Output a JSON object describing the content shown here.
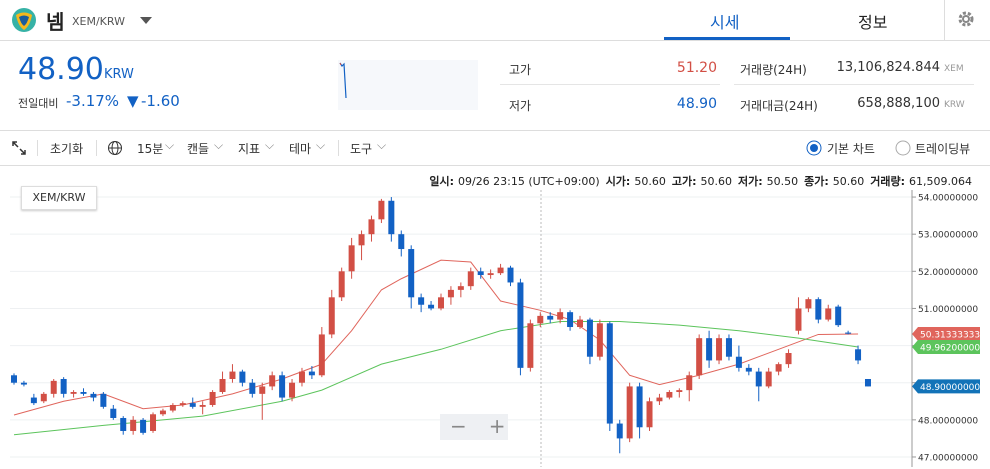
{
  "header": {
    "coin": "넴",
    "pair": "XEM/KRW",
    "tabs": [
      "시세",
      "정보"
    ]
  },
  "summary": {
    "price": "48.90",
    "unit": "KRW",
    "change_label": "전일대비",
    "change_pct": "-3.17%",
    "change": "-1.60",
    "stats": [
      {
        "label": "고가",
        "value": "51.20"
      },
      {
        "label": "저가",
        "value": "48.90"
      },
      {
        "label": "거래량(24H)",
        "value": "13,106,824.844",
        "unit": "XEM"
      },
      {
        "label": "거래대금(24H)",
        "value": "658,888,100",
        "unit": "KRW"
      }
    ]
  },
  "toolbar": {
    "items": [
      "초기화",
      "15분",
      "캔들",
      "지표",
      "테마",
      "도구"
    ],
    "views": [
      "기본 차트",
      "트레이딩뷰"
    ]
  },
  "info": [
    {
      "label": "일시:",
      "value": "09/26 23:15 (UTC+09:00)"
    },
    {
      "label": "시가:",
      "value": "50.60"
    },
    {
      "label": "고가:",
      "value": "50.60"
    },
    {
      "label": "저가:",
      "value": "50.50"
    },
    {
      "label": "종가:",
      "value": "50.60"
    },
    {
      "label": "거래량:",
      "value": "61,509.064"
    }
  ],
  "chart_data": {
    "type": "candlestick",
    "legend": "XEM/KRW",
    "up_color": "#d24f45",
    "down_color": "#1261c4",
    "ylim": [
      46.73,
      54.19
    ],
    "yticks": [
      {
        "value": 47,
        "label": "47.00000000"
      },
      {
        "value": 48,
        "label": "48.00000000"
      },
      {
        "value": 49,
        "label": "49.00000000"
      },
      {
        "value": 50,
        "label": "50.00000000"
      },
      {
        "value": 51,
        "label": "51.00000000"
      },
      {
        "value": 52,
        "label": "52.00000000"
      },
      {
        "value": 53,
        "label": "53.00000000"
      },
      {
        "value": 54,
        "label": "54.00000000"
      }
    ],
    "candles": [
      [
        49.2,
        49.25,
        48.95,
        49.0
      ],
      [
        49.0,
        49.05,
        48.9,
        48.95
      ],
      [
        48.6,
        48.7,
        48.4,
        48.45
      ],
      [
        48.5,
        48.75,
        48.45,
        48.7
      ],
      [
        48.7,
        49.1,
        48.6,
        49.05
      ],
      [
        49.1,
        49.15,
        48.6,
        48.7
      ],
      [
        48.7,
        48.8,
        48.6,
        48.75
      ],
      [
        48.75,
        48.85,
        48.65,
        48.7
      ],
      [
        48.7,
        48.75,
        48.5,
        48.6
      ],
      [
        48.7,
        48.75,
        48.3,
        48.35
      ],
      [
        48.3,
        48.4,
        48.0,
        48.05
      ],
      [
        48.05,
        48.1,
        47.6,
        47.7
      ],
      [
        47.7,
        48.1,
        47.6,
        48.0
      ],
      [
        48.0,
        48.05,
        47.6,
        47.65
      ],
      [
        47.7,
        48.2,
        47.65,
        48.15
      ],
      [
        48.15,
        48.3,
        48.1,
        48.25
      ],
      [
        48.25,
        48.45,
        48.2,
        48.4
      ],
      [
        48.4,
        48.5,
        48.35,
        48.45
      ],
      [
        48.45,
        48.6,
        48.3,
        48.35
      ],
      [
        48.35,
        48.5,
        48.15,
        48.4
      ],
      [
        48.4,
        48.8,
        48.35,
        48.75
      ],
      [
        48.75,
        49.3,
        48.7,
        49.1
      ],
      [
        49.1,
        49.5,
        49.0,
        49.3
      ],
      [
        49.3,
        49.35,
        48.9,
        49.0
      ],
      [
        49.0,
        49.1,
        48.6,
        48.7
      ],
      [
        48.7,
        49.0,
        48.0,
        48.9
      ],
      [
        48.9,
        49.3,
        48.8,
        49.2
      ],
      [
        49.2,
        49.3,
        48.5,
        48.6
      ],
      [
        48.6,
        49.1,
        48.5,
        49.0
      ],
      [
        49.0,
        49.4,
        48.9,
        49.3
      ],
      [
        49.3,
        49.45,
        49.1,
        49.2
      ],
      [
        49.2,
        50.5,
        49.15,
        50.3
      ],
      [
        50.3,
        51.5,
        50.2,
        51.3
      ],
      [
        51.3,
        52.1,
        51.2,
        52.0
      ],
      [
        52.0,
        52.9,
        51.8,
        52.7
      ],
      [
        52.7,
        53.1,
        52.3,
        53.0
      ],
      [
        53.0,
        53.5,
        52.8,
        53.4
      ],
      [
        53.4,
        53.95,
        53.3,
        53.9
      ],
      [
        53.9,
        54.0,
        52.8,
        53.0
      ],
      [
        53.0,
        53.1,
        52.4,
        52.6
      ],
      [
        52.6,
        52.7,
        51.0,
        51.3
      ],
      [
        51.3,
        51.4,
        50.9,
        51.1
      ],
      [
        51.1,
        51.2,
        50.95,
        51.0
      ],
      [
        51.0,
        51.4,
        50.95,
        51.3
      ],
      [
        51.3,
        51.6,
        51.1,
        51.5
      ],
      [
        51.5,
        51.7,
        51.3,
        51.6
      ],
      [
        51.6,
        52.1,
        51.5,
        52.0
      ],
      [
        52.0,
        52.1,
        51.8,
        51.9
      ],
      [
        51.9,
        52.05,
        51.8,
        51.95
      ],
      [
        51.95,
        52.2,
        51.9,
        52.1
      ],
      [
        52.1,
        52.15,
        51.6,
        51.7
      ],
      [
        51.7,
        51.8,
        49.2,
        49.4
      ],
      [
        49.4,
        50.7,
        49.3,
        50.6
      ],
      [
        50.6,
        50.9,
        50.5,
        50.8
      ],
      [
        50.8,
        50.9,
        50.6,
        50.7
      ],
      [
        50.7,
        51.0,
        50.6,
        50.9
      ],
      [
        50.9,
        50.95,
        50.4,
        50.5
      ],
      [
        50.5,
        50.8,
        50.45,
        50.7
      ],
      [
        50.7,
        50.75,
        49.5,
        49.7
      ],
      [
        49.7,
        50.7,
        49.6,
        50.6
      ],
      [
        50.6,
        50.65,
        47.7,
        47.9
      ],
      [
        47.9,
        48.0,
        47.1,
        47.5
      ],
      [
        47.5,
        49.0,
        47.4,
        48.9
      ],
      [
        48.9,
        49.0,
        47.5,
        47.8
      ],
      [
        47.8,
        48.6,
        47.7,
        48.5
      ],
      [
        48.5,
        48.7,
        48.4,
        48.6
      ],
      [
        48.6,
        48.8,
        48.55,
        48.75
      ],
      [
        48.75,
        48.85,
        48.6,
        48.8
      ],
      [
        48.8,
        49.3,
        48.5,
        49.2
      ],
      [
        49.2,
        50.3,
        49.1,
        50.2
      ],
      [
        50.2,
        50.4,
        49.4,
        49.6
      ],
      [
        49.6,
        50.3,
        49.5,
        50.2
      ],
      [
        50.2,
        50.3,
        49.6,
        49.7
      ],
      [
        49.7,
        50.0,
        49.3,
        49.4
      ],
      [
        49.4,
        49.5,
        49.2,
        49.3
      ],
      [
        49.3,
        49.4,
        48.5,
        48.9
      ],
      [
        48.9,
        49.4,
        48.85,
        49.3
      ],
      [
        49.3,
        49.55,
        49.2,
        49.5
      ],
      [
        49.5,
        49.9,
        49.4,
        49.8
      ],
      [
        50.4,
        51.3,
        50.3,
        51.0
      ],
      [
        51.0,
        51.3,
        50.9,
        51.25
      ],
      [
        51.25,
        51.3,
        50.6,
        50.7
      ],
      [
        50.7,
        51.1,
        50.65,
        51.0
      ],
      [
        51.05,
        51.1,
        50.5,
        50.55
      ],
      [
        50.35,
        50.4,
        50.3,
        50.32
      ],
      [
        49.9,
        50.0,
        49.5,
        49.6
      ],
      [
        49.1,
        49.1,
        48.9,
        48.9
      ]
    ],
    "series": [
      {
        "color": "#e0655c",
        "x": [
          0,
          5,
          9,
          13,
          17,
          22,
          27,
          31,
          34,
          37,
          39,
          43,
          46,
          49,
          53,
          56,
          59,
          62,
          65,
          69,
          73,
          77,
          81,
          85
        ],
        "values": [
          48.13,
          48.5,
          48.7,
          48.3,
          48.4,
          48.7,
          49.1,
          49.5,
          50.4,
          51.5,
          51.8,
          52.3,
          52.25,
          51.2,
          50.95,
          50.7,
          50.15,
          49.2,
          48.95,
          49.2,
          49.5,
          49.9,
          50.3,
          50.31333333
        ],
        "last": 50.31333333
      },
      {
        "color": "#5cc45c",
        "x": [
          0,
          9,
          19,
          27,
          31,
          37,
          43,
          49,
          55,
          61,
          67,
          73,
          79,
          85
        ],
        "values": [
          47.6,
          47.85,
          48.1,
          48.5,
          48.8,
          49.5,
          49.9,
          50.4,
          50.65,
          50.65,
          50.55,
          50.4,
          50.2,
          49.962
        ],
        "last": {
          "value": 49.962,
          "label": "49.96200000"
        }
      }
    ],
    "current_price": {
      "value": 48.9,
      "label": "48.90000000",
      "color": "#1273b8"
    }
  }
}
